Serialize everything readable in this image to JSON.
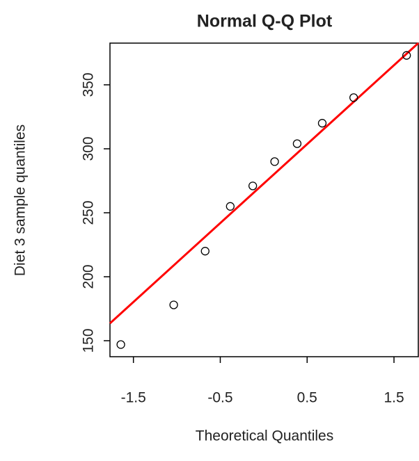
{
  "chart_data": {
    "type": "scatter",
    "title": "Normal Q-Q Plot",
    "x_label": "Theoretical Quantiles",
    "y_label": "Diet 3 sample quantiles",
    "x": [
      -1.645,
      -1.036,
      -0.674,
      -0.385,
      -0.126,
      0.126,
      0.385,
      0.674,
      1.036,
      1.645
    ],
    "values": [
      147,
      178,
      220,
      255,
      271,
      290,
      304,
      320,
      340,
      373
    ],
    "color": "#000000",
    "reference_line": {
      "x": [
        -1.77,
        1.78
      ],
      "y": [
        163.6,
        382.6
      ],
      "color": "#ff0000"
    },
    "xlim": [
      -1.77,
      1.78
    ],
    "ylim": [
      137.5,
      382.6
    ],
    "xticks": [
      -1.5,
      -0.5,
      0.5,
      1.5
    ],
    "yticks": [
      150,
      200,
      250,
      300,
      350
    ],
    "grid": false
  }
}
